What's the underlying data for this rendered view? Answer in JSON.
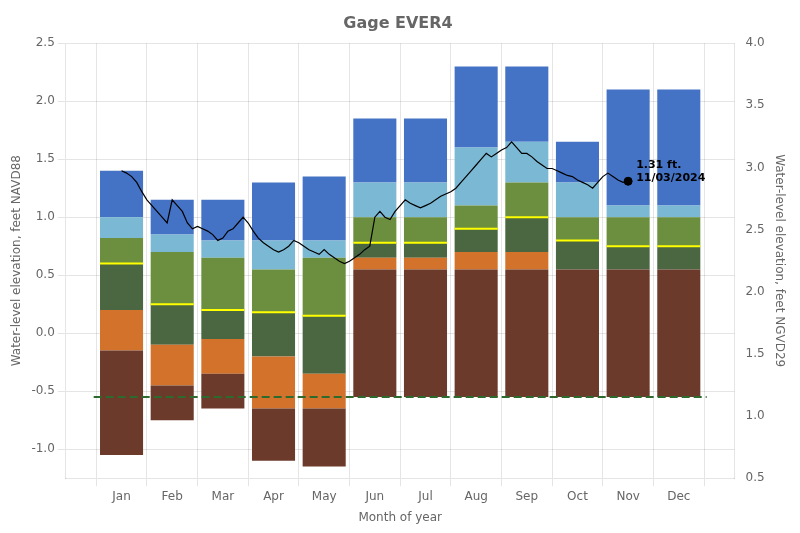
{
  "chart_data": {
    "type": "bar",
    "title": "Gage EVER4",
    "x_label": "Month of year",
    "y_label": "Water-level elevation, feet NAVD88",
    "y2_label": "Water-level elevation, feet NGVD29",
    "x": [
      1,
      2,
      3,
      4,
      5,
      6,
      7,
      8,
      9,
      10,
      11,
      12
    ],
    "xlim": [
      0.45,
      12.55
    ],
    "xticks": [
      {
        "value": 1,
        "label": "Jan"
      },
      {
        "value": 2,
        "label": "Feb"
      },
      {
        "value": 3,
        "label": "Mar"
      },
      {
        "value": 4,
        "label": "Apr"
      },
      {
        "value": 5,
        "label": "May"
      },
      {
        "value": 6,
        "label": "Jun"
      },
      {
        "value": 7,
        "label": "Jul"
      },
      {
        "value": 8,
        "label": "Aug"
      },
      {
        "value": 9,
        "label": "Sep"
      },
      {
        "value": 10,
        "label": "Oct"
      },
      {
        "value": 11,
        "label": "Nov"
      },
      {
        "value": 12,
        "label": "Dec"
      }
    ],
    "ylim": [
      -1.25,
      2.5
    ],
    "yticks": [
      {
        "value": -1.0,
        "label": "-1.0"
      },
      -0.5,
      {
        "value": 0.0,
        "label": "0.0"
      },
      0.5,
      {
        "value": 1.0,
        "label": "1.0"
      },
      1.5,
      {
        "value": 2.0,
        "label": "2.0"
      },
      2.5
    ],
    "y2lim": [
      0.5,
      4.0
    ],
    "y2ticks": [
      0.5,
      {
        "value": 1.0,
        "label": "1.0"
      },
      1.5,
      {
        "value": 2.0,
        "label": "2.0"
      },
      2.5,
      {
        "value": 3.0,
        "label": "3.0"
      },
      3.5,
      {
        "value": 4.0,
        "label": "4.0"
      }
    ],
    "grid": true,
    "series": [
      {
        "type": "bar",
        "color": "#6B3A2A",
        "values": [
          [
            -1.05,
            -0.15
          ],
          [
            -0.75,
            -0.45
          ],
          [
            -0.65,
            -0.35
          ],
          [
            -1.1,
            -0.65
          ],
          [
            -1.15,
            -0.65
          ],
          [
            -0.55,
            0.55
          ],
          [
            -0.55,
            0.55
          ],
          [
            -0.55,
            0.55
          ],
          [
            -0.55,
            0.55
          ],
          [
            -0.55,
            0.55
          ],
          [
            -0.55,
            0.55
          ],
          [
            -0.55,
            0.55
          ]
        ]
      },
      {
        "type": "bar",
        "color": "#D2722B",
        "values": [
          [
            -0.15,
            0.2
          ],
          [
            -0.45,
            -0.1
          ],
          [
            -0.35,
            -0.05
          ],
          [
            -0.65,
            -0.2
          ],
          [
            -0.65,
            -0.35
          ],
          [
            0.55,
            0.65
          ],
          [
            0.55,
            0.65
          ],
          [
            0.55,
            0.7
          ],
          [
            0.55,
            0.7
          ],
          [
            0.55,
            0.55
          ],
          [
            0.55,
            0.55
          ],
          [
            0.55,
            0.55
          ]
        ]
      },
      {
        "type": "bar",
        "color": "#4A6741",
        "values": [
          [
            0.2,
            0.6
          ],
          [
            -0.1,
            0.25
          ],
          [
            -0.05,
            0.2
          ],
          [
            -0.2,
            0.18
          ],
          [
            -0.35,
            0.15
          ],
          [
            0.65,
            0.78
          ],
          [
            0.65,
            0.78
          ],
          [
            0.7,
            0.9
          ],
          [
            0.7,
            1.0
          ],
          [
            0.55,
            0.8
          ],
          [
            0.55,
            0.75
          ],
          [
            0.55,
            0.75
          ]
        ]
      },
      {
        "type": "bar",
        "color": "#6B8F3E",
        "values": [
          [
            0.6,
            0.82
          ],
          [
            0.25,
            0.7
          ],
          [
            0.2,
            0.65
          ],
          [
            0.18,
            0.55
          ],
          [
            0.15,
            0.65
          ],
          [
            0.78,
            1.0
          ],
          [
            0.78,
            1.0
          ],
          [
            0.9,
            1.1
          ],
          [
            1.0,
            1.3
          ],
          [
            0.8,
            1.0
          ],
          [
            0.75,
            1.0
          ],
          [
            0.75,
            1.0
          ]
        ]
      },
      {
        "type": "bar",
        "color": "#7AB8D4",
        "values": [
          [
            0.82,
            1.0
          ],
          [
            0.7,
            0.85
          ],
          [
            0.65,
            0.8
          ],
          [
            0.55,
            0.8
          ],
          [
            0.65,
            0.8
          ],
          [
            1.0,
            1.3
          ],
          [
            1.0,
            1.3
          ],
          [
            1.1,
            1.6
          ],
          [
            1.3,
            1.65
          ],
          [
            1.0,
            1.3
          ],
          [
            1.0,
            1.1
          ],
          [
            1.0,
            1.1
          ]
        ]
      },
      {
        "type": "bar",
        "color": "#4472C4",
        "values": [
          [
            1.0,
            1.4
          ],
          [
            0.85,
            1.15
          ],
          [
            0.8,
            1.15
          ],
          [
            0.8,
            1.3
          ],
          [
            0.8,
            1.35
          ],
          [
            1.3,
            1.85
          ],
          [
            1.3,
            1.85
          ],
          [
            1.6,
            2.3
          ],
          [
            1.65,
            2.3
          ],
          [
            1.3,
            1.65
          ],
          [
            1.1,
            2.1
          ],
          [
            1.1,
            2.1
          ]
        ]
      },
      {
        "type": "line",
        "marker": "line",
        "line_style": "none",
        "color": "#FFFF00",
        "values": [
          0.6,
          0.25,
          0.2,
          0.18,
          0.15,
          0.78,
          0.78,
          0.9,
          1.0,
          0.8,
          0.75,
          0.75
        ]
      },
      {
        "type": "line",
        "marker": "none",
        "line_style": "solid",
        "color": "#000000",
        "x": [
          1.0,
          1.1,
          1.2,
          1.3,
          1.4,
          1.5,
          1.6,
          1.7,
          1.8,
          1.9,
          2.0,
          2.1,
          2.2,
          2.3,
          2.4,
          2.5,
          2.6,
          2.7,
          2.8,
          2.9,
          3.0,
          3.1,
          3.2,
          3.3,
          3.4,
          3.5,
          3.6,
          3.7,
          3.8,
          3.9,
          4.0,
          4.1,
          4.2,
          4.3,
          4.4,
          4.5,
          4.6,
          4.7,
          4.8,
          4.9,
          5.0,
          5.1,
          5.2,
          5.3,
          5.4,
          5.5,
          5.6,
          5.7,
          5.8,
          5.9,
          6.0,
          6.1,
          6.2,
          6.3,
          6.4,
          6.5,
          6.6,
          6.7,
          6.8,
          6.9,
          7.0,
          7.1,
          7.2,
          7.3,
          7.4,
          7.5,
          7.6,
          7.7,
          7.8,
          7.9,
          8.0,
          8.1,
          8.2,
          8.3,
          8.4,
          8.5,
          8.6,
          8.7,
          8.8,
          8.9,
          9.0,
          9.1,
          9.2,
          9.3,
          9.4,
          9.5,
          9.6,
          9.7,
          9.8,
          9.9,
          10.0,
          10.1,
          10.2,
          10.3,
          10.4,
          10.5,
          10.6,
          10.7,
          10.8,
          10.9,
          11.0
        ],
        "values": [
          1.4,
          1.38,
          1.35,
          1.3,
          1.22,
          1.15,
          1.1,
          1.05,
          1.0,
          0.95,
          1.15,
          1.1,
          1.05,
          0.95,
          0.9,
          0.92,
          0.9,
          0.88,
          0.85,
          0.8,
          0.82,
          0.88,
          0.9,
          0.95,
          1.0,
          0.95,
          0.88,
          0.82,
          0.78,
          0.75,
          0.72,
          0.7,
          0.72,
          0.75,
          0.8,
          0.78,
          0.75,
          0.72,
          0.7,
          0.68,
          0.72,
          0.68,
          0.65,
          0.62,
          0.6,
          0.62,
          0.65,
          0.68,
          0.72,
          0.75,
          1.0,
          1.05,
          1.0,
          0.98,
          1.05,
          1.1,
          1.15,
          1.12,
          1.1,
          1.08,
          1.1,
          1.12,
          1.15,
          1.18,
          1.2,
          1.22,
          1.25,
          1.3,
          1.35,
          1.4,
          1.45,
          1.5,
          1.55,
          1.52,
          1.55,
          1.58,
          1.6,
          1.65,
          1.6,
          1.55,
          1.55,
          1.52,
          1.48,
          1.45,
          1.42,
          1.42,
          1.4,
          1.38,
          1.36,
          1.35,
          1.32,
          1.3,
          1.28,
          1.25,
          1.3,
          1.35,
          1.38,
          1.35,
          1.32,
          1.3,
          1.31
        ]
      }
    ],
    "reference_line": {
      "y": -0.55,
      "color": "#2D6A2D",
      "line_style": "dashed"
    },
    "annotations": [
      {
        "x": 11,
        "y": 1.31,
        "text": "1.31 ft.\n11/03/2024",
        "marker": "circle",
        "color": "#000000"
      }
    ]
  }
}
